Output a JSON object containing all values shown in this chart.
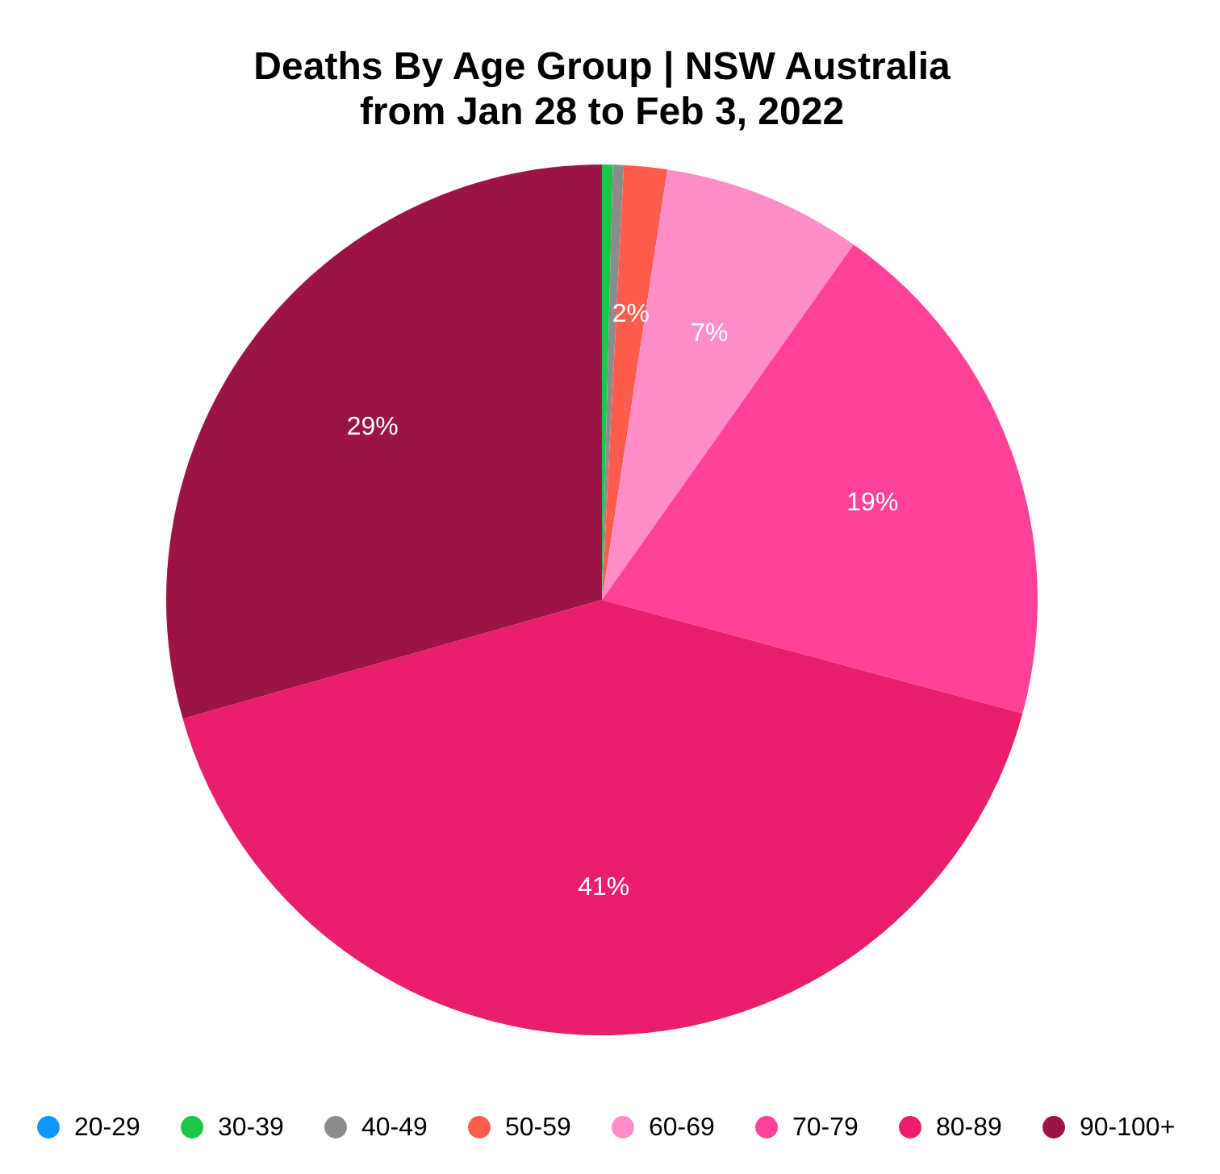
{
  "chart_data": {
    "type": "pie",
    "title": "Deaths By Age Group | NSW Australia",
    "subtitle": "from Jan 28 to Feb 3, 2022",
    "categories": [
      "20-29",
      "30-39",
      "40-49",
      "50-59",
      "60-69",
      "70-79",
      "80-89",
      "90-100+"
    ],
    "values": [
      0,
      0.4,
      0.4,
      1.6,
      7.4,
      19.4,
      41.4,
      29.4
    ],
    "colors": [
      "#0f96ff",
      "#1dc548",
      "#8c8c8c",
      "#ff5c4d",
      "#ff8dc7",
      "#ff4298",
      "#e91f6d",
      "#9b1445"
    ],
    "value_labels": [
      null,
      null,
      null,
      "2%",
      "7%",
      "19%",
      "41%",
      "29%"
    ],
    "legend": "bottom"
  }
}
